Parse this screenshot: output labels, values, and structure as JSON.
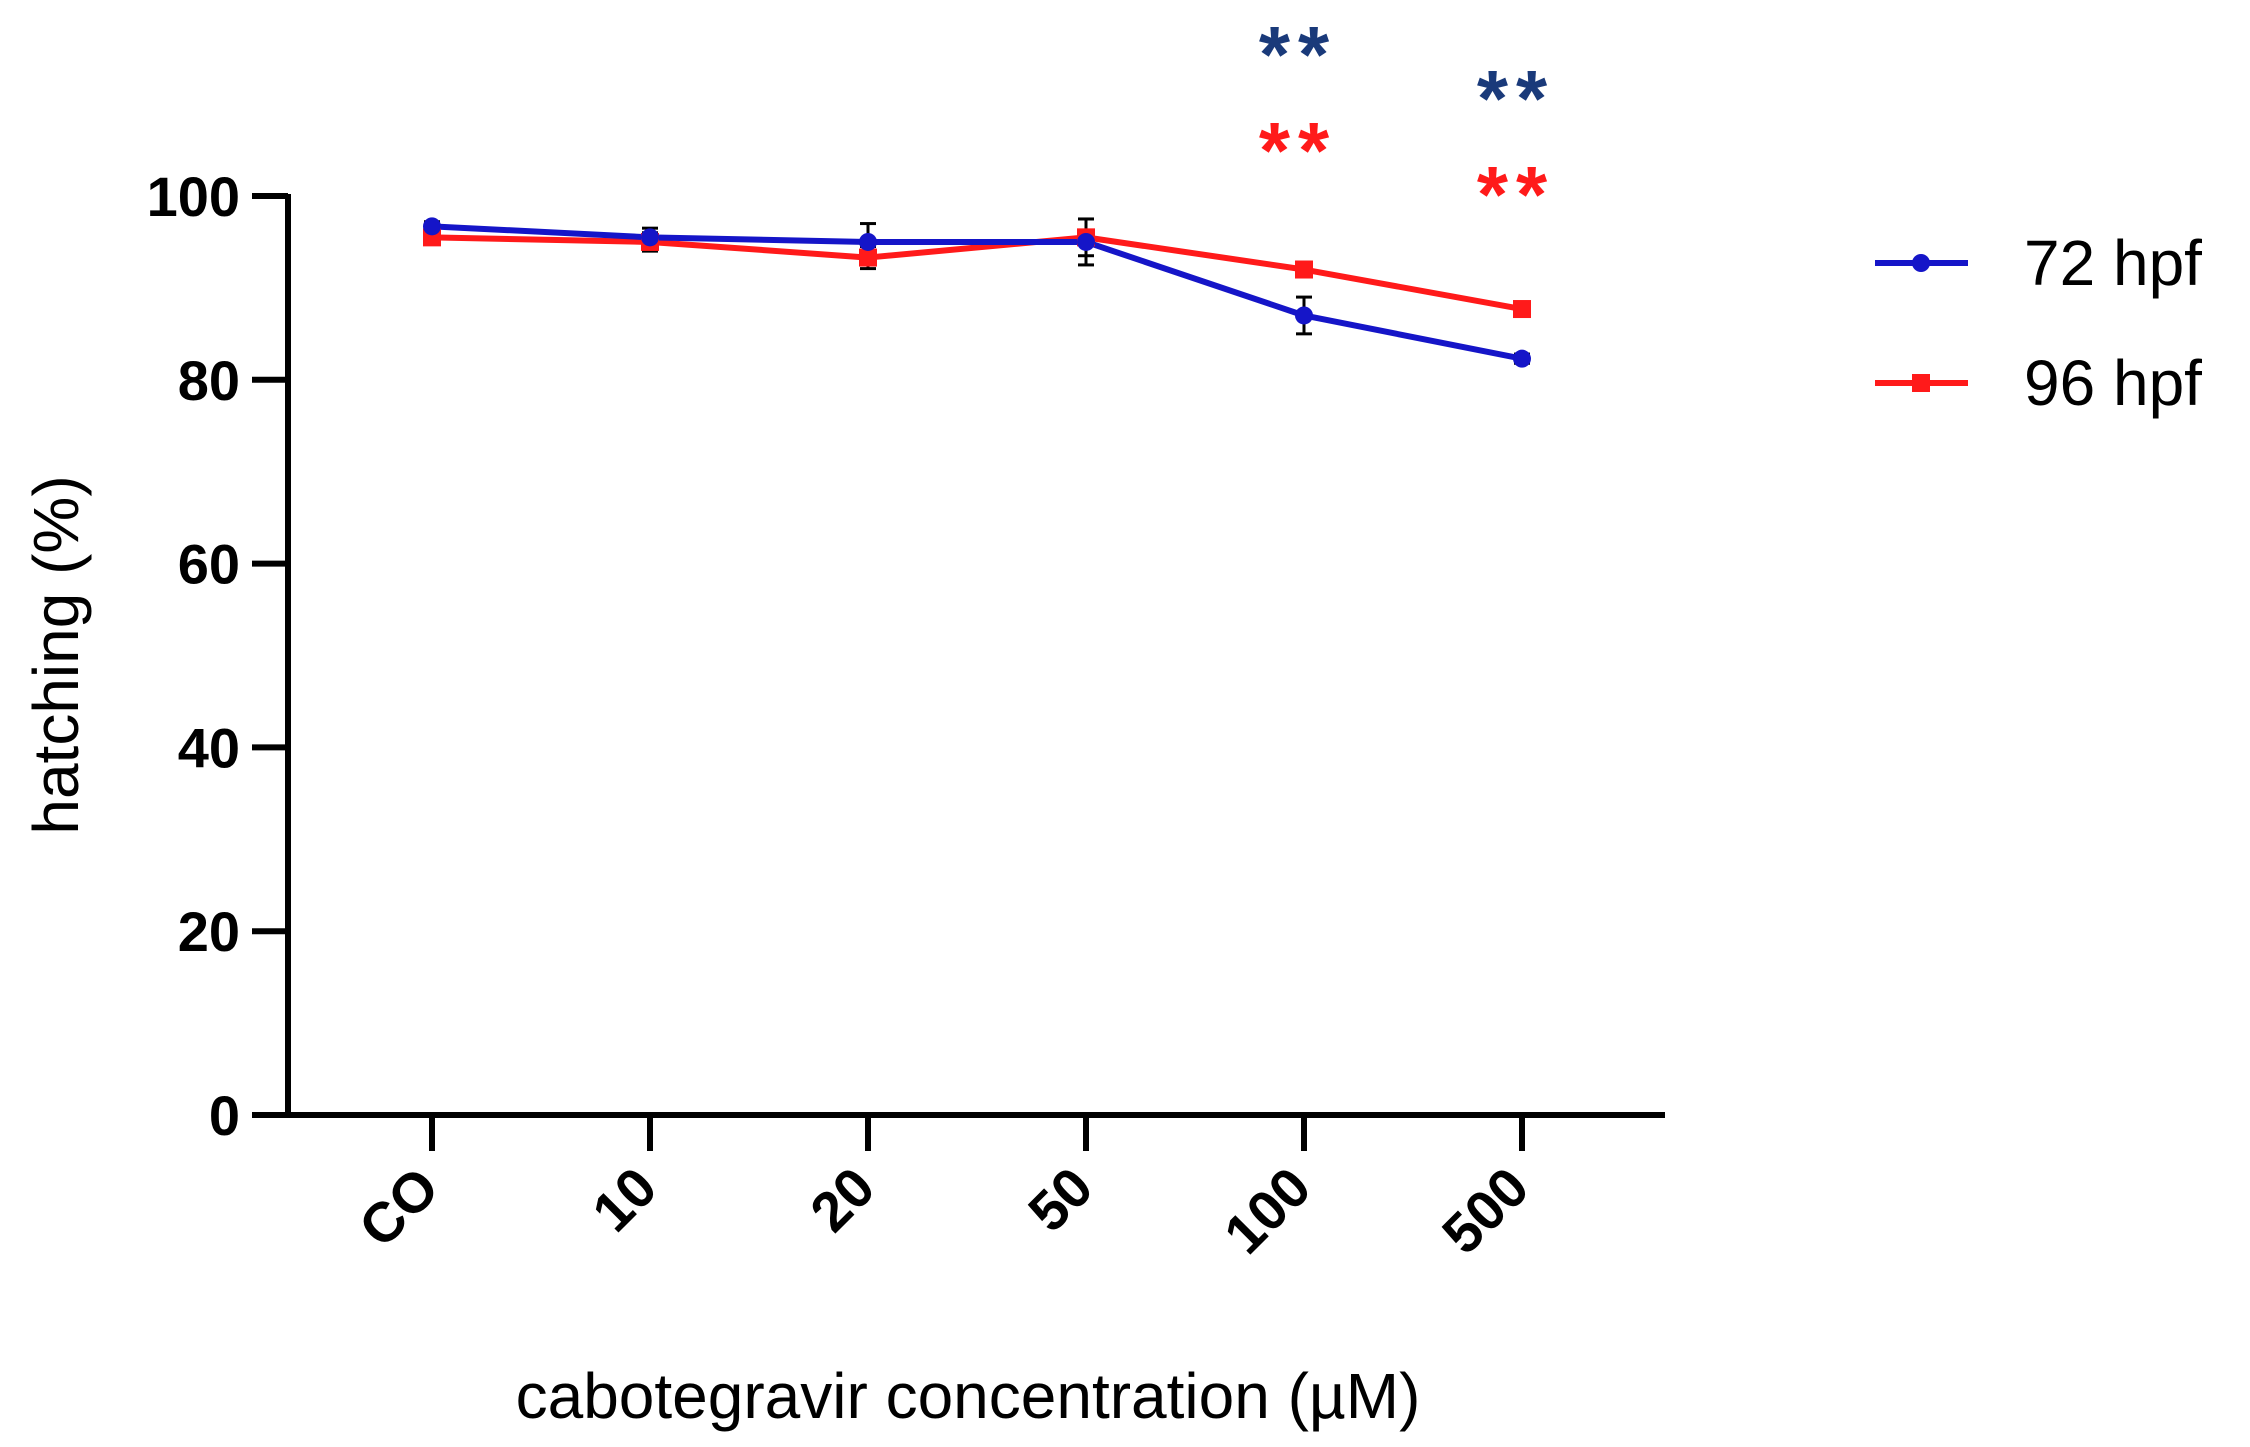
{
  "chart_data": {
    "type": "line",
    "title": "",
    "xlabel": "cabotegravir concentration (µM)",
    "ylabel": "hatching (%)",
    "categories": [
      "CO",
      "10",
      "20",
      "50",
      "100",
      "500"
    ],
    "ylim": [
      0,
      100
    ],
    "yticks": [
      "0",
      "20",
      "40",
      "60",
      "80",
      "100"
    ],
    "legend_position": "top-right",
    "series": [
      {
        "name": "72 hpf",
        "color": "#1515c8",
        "marker": "circle",
        "values": [
          96.7,
          95.5,
          95.0,
          95.0,
          87.0,
          82.3
        ],
        "errors": [
          0.5,
          1.0,
          2.0,
          2.5,
          2.0,
          0.5
        ]
      },
      {
        "name": "96 hpf",
        "color": "#ff1a1a",
        "marker": "square",
        "values": [
          95.5,
          95.0,
          93.3,
          95.5,
          92.0,
          87.7
        ],
        "errors": [
          0.5,
          1.0,
          1.2,
          2.0,
          0.8,
          0.5
        ]
      }
    ],
    "annotations": [
      {
        "category": "100",
        "text": "**",
        "color": "#1a3a7a",
        "series": "72 hpf"
      },
      {
        "category": "100",
        "text": "**",
        "color": "#ff1a1a",
        "series": "96 hpf"
      },
      {
        "category": "500",
        "text": "**",
        "color": "#1a3a7a",
        "series": "72 hpf"
      },
      {
        "category": "500",
        "text": "**",
        "color": "#ff1a1a",
        "series": "96 hpf"
      }
    ]
  }
}
